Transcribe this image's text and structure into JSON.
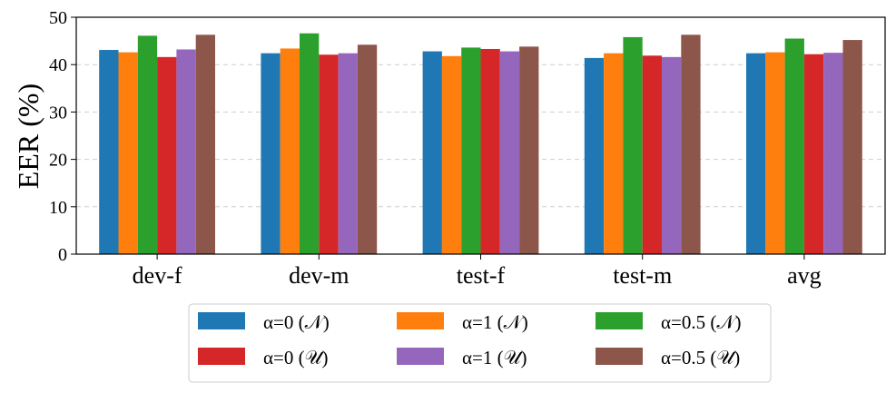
{
  "chart_data": {
    "type": "bar",
    "title": "",
    "xlabel": "",
    "ylabel": "EER (%)",
    "ylim": [
      0,
      50
    ],
    "yticks": [
      0,
      10,
      20,
      30,
      40,
      50
    ],
    "grid": "y-dashed",
    "legend_position": "bottom-center",
    "categories": [
      "dev-f",
      "dev-m",
      "test-f",
      "test-m",
      "avg"
    ],
    "series": [
      {
        "name": "α=0 (𝒩)",
        "color": "#1f77b4",
        "values": [
          43.1,
          42.4,
          42.8,
          41.4,
          42.4
        ]
      },
      {
        "name": "α=1 (𝒩)",
        "color": "#ff7f0e",
        "values": [
          42.6,
          43.4,
          41.8,
          42.4,
          42.6
        ]
      },
      {
        "name": "α=0.5 (𝒩)",
        "color": "#2ca02c",
        "values": [
          46.1,
          46.6,
          43.6,
          45.8,
          45.5
        ]
      },
      {
        "name": "α=0 (𝒰)",
        "color": "#d62728",
        "values": [
          41.6,
          42.1,
          43.3,
          41.9,
          42.2
        ]
      },
      {
        "name": "α=1 (𝒰)",
        "color": "#9467bd",
        "values": [
          43.2,
          42.4,
          42.8,
          41.6,
          42.5
        ]
      },
      {
        "name": "α=0.5 (𝒰)",
        "color": "#8c564b",
        "values": [
          46.3,
          44.2,
          43.8,
          46.3,
          45.2
        ]
      }
    ]
  }
}
